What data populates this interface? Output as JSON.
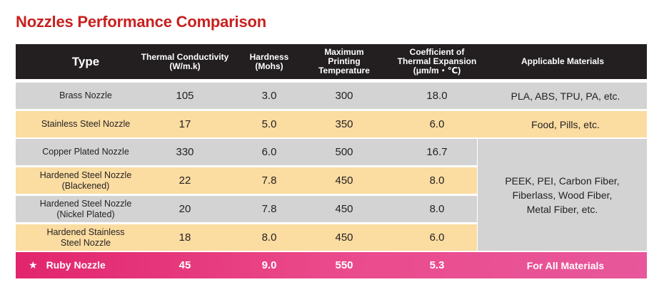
{
  "title": "Nozzles Performance Comparison",
  "headers": {
    "type": "Type",
    "conductivity_1": "Thermal Conductivity",
    "conductivity_2": "(W/m.k)",
    "hardness_1": "Hardness",
    "hardness_2": "(Mohs)",
    "temp_1": "Maximum",
    "temp_2": "Printing",
    "temp_3": "Temperature",
    "cte_1": "Coefficient of",
    "cte_2": "Thermal Expansion",
    "cte_3": "(μm/m・℃)",
    "materials": "Applicable Materials"
  },
  "rows": [
    {
      "name_1": "Brass Nozzle",
      "name_2": "",
      "conductivity": "105",
      "hardness": "3.0",
      "temperature": "300",
      "cte": "18.0",
      "materials": "PLA, ABS, TPU, PA, etc."
    },
    {
      "name_1": "Stainless Steel Nozzle",
      "name_2": "",
      "conductivity": "17",
      "hardness": "5.0",
      "temperature": "350",
      "cte": "6.0",
      "materials": "Food, Pills, etc."
    },
    {
      "name_1": "Copper Plated Nozzle",
      "name_2": "",
      "conductivity": "330",
      "hardness": "6.0",
      "temperature": "500",
      "cte": "16.7"
    },
    {
      "name_1": "Hardened Steel Nozzle",
      "name_2": "(Blackened)",
      "conductivity": "22",
      "hardness": "7.8",
      "temperature": "450",
      "cte": "8.0"
    },
    {
      "name_1": "Hardened Steel Nozzle",
      "name_2": "(Nickel Plated)",
      "conductivity": "20",
      "hardness": "7.8",
      "temperature": "450",
      "cte": "8.0"
    },
    {
      "name_1": "Hardened Stainless",
      "name_2": "Steel Nozzle",
      "conductivity": "18",
      "hardness": "8.0",
      "temperature": "450",
      "cte": "6.0"
    },
    {
      "name_1": "Ruby Nozzle",
      "name_2": "",
      "conductivity": "45",
      "hardness": "9.0",
      "temperature": "550",
      "cte": "5.3",
      "materials": "For All Materials"
    }
  ],
  "merged_materials": {
    "line_1": "PEEK, PEI, Carbon Fiber,",
    "line_2": "Fiberlass, Wood Fiber,",
    "line_3": "Metal Fiber, etc."
  },
  "ruby_star": "★",
  "colors": {
    "title": "#c8201e",
    "header_bg": "#231f20",
    "gray_row": "#d3d3d4",
    "tan_row": "#fbdca1",
    "ruby_row": "#e2256d"
  }
}
